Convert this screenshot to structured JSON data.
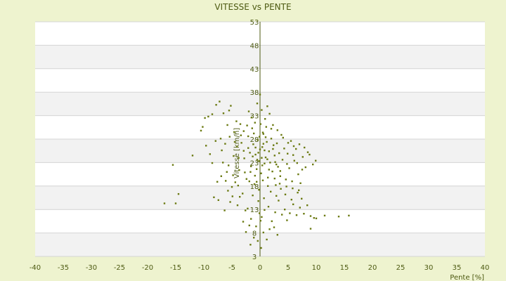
{
  "chart_data": {
    "type": "scatter",
    "title": "VITESSE vs PENTE",
    "xlabel": "Pente [%]",
    "ylabel": "Vitesse [km/h]",
    "xlim": [
      -40,
      40
    ],
    "ylim": [
      3,
      53
    ],
    "x_ticks": [
      "-40",
      "-35",
      "-30",
      "-25",
      "-20",
      "-15",
      "-10",
      "-5",
      "0",
      "5",
      "10",
      "15",
      "20",
      "25",
      "30",
      "35",
      "40"
    ],
    "y_ticks": [
      "3",
      "8",
      "13",
      "18",
      "23",
      "28",
      "33",
      "38",
      "43",
      "48",
      "53"
    ],
    "grid": true,
    "legend": "none",
    "colors": {
      "background": "#eef3cf",
      "plot_band_light": "#ffffff",
      "plot_band_dark": "#f2f2f2",
      "axis": "#4d5a12",
      "marker": "#6b7a12"
    },
    "series": [
      {
        "points": [
          [
            -17,
            14.3
          ],
          [
            -15,
            14.3
          ],
          [
            -15.5,
            22.5
          ],
          [
            -14.5,
            16.3
          ],
          [
            -12,
            24.5
          ],
          [
            -10.5,
            29.8
          ],
          [
            -10.2,
            30.6
          ],
          [
            -9.8,
            32.5
          ],
          [
            -9.2,
            32.8
          ],
          [
            -8.5,
            33.3
          ],
          [
            -7.8,
            35.3
          ],
          [
            -7.2,
            36.0
          ],
          [
            -6.5,
            33.5
          ],
          [
            -5.8,
            31.0
          ],
          [
            -5.5,
            34.1
          ],
          [
            -5.2,
            35.1
          ],
          [
            -4.6,
            29.5
          ],
          [
            -4.2,
            31.8
          ],
          [
            -3.5,
            31.2
          ],
          [
            -2.9,
            29.7
          ],
          [
            -9.6,
            26.6
          ],
          [
            -8.5,
            22.9
          ],
          [
            -7.6,
            18.9
          ],
          [
            -8.2,
            15.6
          ],
          [
            -7.4,
            15.0
          ],
          [
            -6.1,
            19.1
          ],
          [
            -6.8,
            25.6
          ],
          [
            -5.6,
            22.4
          ],
          [
            -5.0,
            17.8
          ],
          [
            -4.7,
            24.4
          ],
          [
            -4.1,
            26.4
          ],
          [
            -4.4,
            18.8
          ],
          [
            -3.7,
            21.4
          ],
          [
            -3.3,
            27.2
          ],
          [
            -3.1,
            16.4
          ],
          [
            -2.8,
            23.9
          ],
          [
            -2.4,
            19.5
          ],
          [
            -2.1,
            28.6
          ],
          [
            -1.8,
            25.1
          ],
          [
            -1.6,
            22.2
          ],
          [
            -1.4,
            30.3
          ],
          [
            -1.2,
            26.9
          ],
          [
            -1.0,
            18.4
          ],
          [
            -0.8,
            24.7
          ],
          [
            -0.6,
            21.6
          ],
          [
            -0.4,
            27.8
          ],
          [
            -0.2,
            23.3
          ],
          [
            0.0,
            25.8
          ],
          [
            0.2,
            20.7
          ],
          [
            0.4,
            26.3
          ],
          [
            0.6,
            29.1
          ],
          [
            0.8,
            22.8
          ],
          [
            1.0,
            24.1
          ],
          [
            1.2,
            27.4
          ],
          [
            1.4,
            19.8
          ],
          [
            1.6,
            25.4
          ],
          [
            1.8,
            23.0
          ],
          [
            2.0,
            28.1
          ],
          [
            2.2,
            21.1
          ],
          [
            2.4,
            26.7
          ],
          [
            2.6,
            24.5
          ],
          [
            2.8,
            18.2
          ],
          [
            3.0,
            27.1
          ],
          [
            3.2,
            22.1
          ],
          [
            3.4,
            25.0
          ],
          [
            3.6,
            20.1
          ],
          [
            3.8,
            28.9
          ],
          [
            4.0,
            23.6
          ],
          [
            4.3,
            26.0
          ],
          [
            4.6,
            19.4
          ],
          [
            4.9,
            24.9
          ],
          [
            5.2,
            21.8
          ],
          [
            5.5,
            27.6
          ],
          [
            5.8,
            17.5
          ],
          [
            6.1,
            23.4
          ],
          [
            6.4,
            25.9
          ],
          [
            6.8,
            20.5
          ],
          [
            7.2,
            18.6
          ],
          [
            7.6,
            24.2
          ],
          [
            8.1,
            22.0
          ],
          [
            8.5,
            25.2
          ],
          [
            9.4,
            22.6
          ],
          [
            9.9,
            23.4
          ],
          [
            -1.5,
            32.6
          ],
          [
            -0.9,
            31.5
          ],
          [
            0.3,
            34.2
          ],
          [
            0.9,
            32.3
          ],
          [
            1.3,
            35.0
          ],
          [
            1.7,
            33.4
          ],
          [
            2.3,
            31.0
          ],
          [
            0.0,
            37.5
          ],
          [
            -0.5,
            35.6
          ],
          [
            -2.0,
            33.9
          ],
          [
            1.1,
            30.6
          ],
          [
            0.5,
            29.4
          ],
          [
            -0.3,
            14.8
          ],
          [
            -0.1,
            12.2
          ],
          [
            0.1,
            10.6
          ],
          [
            0.3,
            11.4
          ],
          [
            -0.7,
            9.4
          ],
          [
            -1.1,
            7.0
          ],
          [
            -0.4,
            6.3
          ],
          [
            0.6,
            8.1
          ],
          [
            1.2,
            6.6
          ],
          [
            -1.6,
            11.0
          ],
          [
            -2.2,
            13.2
          ],
          [
            -1.9,
            9.6
          ],
          [
            0.8,
            12.9
          ],
          [
            1.5,
            13.6
          ],
          [
            2.1,
            10.5
          ],
          [
            2.7,
            12.4
          ],
          [
            3.3,
            14.9
          ],
          [
            3.9,
            11.9
          ],
          [
            4.4,
            13.0
          ],
          [
            4.8,
            10.7
          ],
          [
            5.3,
            12.2
          ],
          [
            5.9,
            14.1
          ],
          [
            6.5,
            11.8
          ],
          [
            7.1,
            13.4
          ],
          [
            7.8,
            12.1
          ],
          [
            8.4,
            13.9
          ],
          [
            9.0,
            11.6
          ],
          [
            9.6,
            11.2
          ],
          [
            10.0,
            11.1
          ],
          [
            11.5,
            11.7
          ],
          [
            14.0,
            11.5
          ],
          [
            15.8,
            11.7
          ],
          [
            9.0,
            8.9
          ],
          [
            -3.0,
            10.4
          ],
          [
            -2.6,
            12.8
          ],
          [
            -3.6,
            15.7
          ],
          [
            -4.0,
            13.9
          ],
          [
            -5.3,
            14.6
          ],
          [
            -6.3,
            12.8
          ],
          [
            -1.3,
            16.0
          ],
          [
            -0.2,
            17.2
          ],
          [
            0.7,
            15.4
          ],
          [
            1.9,
            16.8
          ],
          [
            2.9,
            15.9
          ],
          [
            3.7,
            17.4
          ],
          [
            4.5,
            16.2
          ],
          [
            5.6,
            15.1
          ],
          [
            6.7,
            16.6
          ],
          [
            7.4,
            15.3
          ],
          [
            -2.5,
            8.2
          ],
          [
            -1.7,
            5.5
          ],
          [
            0.2,
            4.8
          ],
          [
            1.7,
            8.8
          ],
          [
            2.5,
            9.2
          ],
          [
            3.1,
            7.6
          ],
          [
            -3.9,
            18.1
          ],
          [
            -4.8,
            20.3
          ],
          [
            -5.9,
            21.0
          ],
          [
            -6.6,
            23.0
          ],
          [
            -2.7,
            20.9
          ],
          [
            -1.9,
            19.0
          ],
          [
            -0.6,
            18.9
          ],
          [
            0.5,
            19.2
          ],
          [
            1.4,
            18.0
          ],
          [
            2.6,
            19.6
          ],
          [
            3.5,
            18.5
          ],
          [
            4.7,
            17.9
          ],
          [
            5.7,
            19.0
          ],
          [
            6.9,
            17.1
          ],
          [
            -7.0,
            28.1
          ],
          [
            -6.2,
            27.0
          ],
          [
            -5.4,
            28.5
          ],
          [
            -4.5,
            27.4
          ],
          [
            -3.4,
            28.8
          ],
          [
            -2.3,
            30.9
          ],
          [
            -1.1,
            29.2
          ],
          [
            0.1,
            31.2
          ],
          [
            1.0,
            28.4
          ],
          [
            2.0,
            30.2
          ],
          [
            3.1,
            29.9
          ],
          [
            4.1,
            28.3
          ],
          [
            5.0,
            27.2
          ],
          [
            6.0,
            26.5
          ],
          [
            7.0,
            26.9
          ],
          [
            7.9,
            26.2
          ],
          [
            -8.9,
            24.8
          ],
          [
            -7.9,
            27.6
          ],
          [
            -6.9,
            20.1
          ],
          [
            -5.7,
            17.0
          ],
          [
            -4.9,
            15.8
          ],
          [
            -3.8,
            24.0
          ],
          [
            -2.9,
            25.5
          ],
          [
            -1.7,
            21.0
          ],
          [
            -0.5,
            23.6
          ],
          [
            0.4,
            22.4
          ],
          [
            1.6,
            21.5
          ],
          [
            2.7,
            23.1
          ],
          [
            3.6,
            21.2
          ],
          [
            4.8,
            22.7
          ],
          [
            5.9,
            24.6
          ],
          [
            6.6,
            22.9
          ],
          [
            7.5,
            21.5
          ],
          [
            8.8,
            24.7
          ],
          [
            -0.8,
            26.2
          ],
          [
            -0.3,
            25.1
          ],
          [
            0.3,
            24.0
          ],
          [
            0.8,
            25.6
          ],
          [
            1.3,
            23.7
          ],
          [
            -1.3,
            24.3
          ],
          [
            -2.1,
            26.1
          ],
          [
            2.3,
            25.9
          ],
          [
            2.9,
            22.6
          ],
          [
            -0.1,
            28.5
          ],
          [
            0.6,
            27.0
          ],
          [
            -0.9,
            20.2
          ]
        ]
      }
    ]
  }
}
